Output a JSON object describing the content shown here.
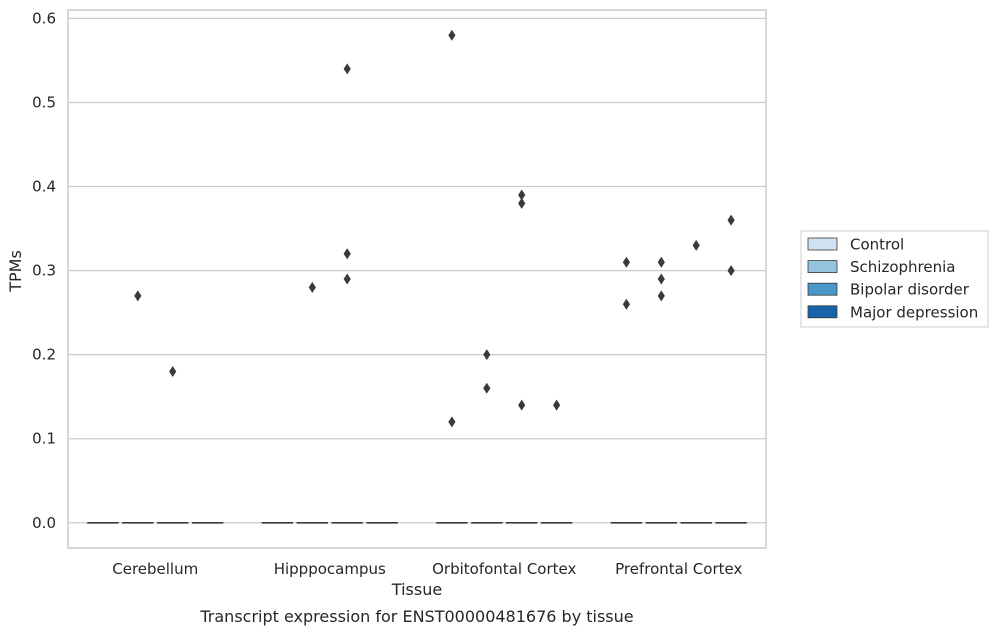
{
  "caption": "Transcript expression for ENST00000481676 by tissue",
  "colors": {
    "grid": "#cccccc",
    "frame": "#cccccc",
    "marker": "#3a3a3a",
    "median_line": "#3a3a3a",
    "legend_border": "#cccccc"
  },
  "chart_data": {
    "type": "boxplot",
    "title": "",
    "xlabel": "Tissue",
    "ylabel": "TPMs",
    "ylim": [
      -0.03,
      0.61
    ],
    "yticks": [
      "0.0",
      "0.1",
      "0.2",
      "0.3",
      "0.4",
      "0.5",
      "0.6"
    ],
    "grid": true,
    "legend_position": "right, outside plot",
    "categories": [
      "Cerebellum",
      "Hipppocampus",
      "Orbitofontal Cortex",
      "Prefrontal Cortex"
    ],
    "series": [
      {
        "name": "Control",
        "color": "#d0e1f2",
        "median": [
          0,
          0,
          0,
          0
        ],
        "outliers": [
          [],
          [],
          [
            0.12,
            0.58
          ],
          [
            0.26,
            0.31
          ]
        ]
      },
      {
        "name": "Schizophrenia",
        "color": "#94c4df",
        "median": [
          0,
          0,
          0,
          0
        ],
        "outliers": [
          [
            0.27
          ],
          [
            0.28
          ],
          [
            0.16,
            0.2
          ],
          [
            0.27,
            0.29,
            0.31
          ]
        ]
      },
      {
        "name": "Bipolar disorder",
        "color": "#4a98c9",
        "median": [
          0,
          0,
          0,
          0
        ],
        "outliers": [
          [
            0.18
          ],
          [
            0.29,
            0.32,
            0.54
          ],
          [
            0.14,
            0.38,
            0.39
          ],
          [
            0.33
          ]
        ]
      },
      {
        "name": "Major depression",
        "color": "#1764ab",
        "median": [
          0,
          0,
          0,
          0
        ],
        "outliers": [
          [],
          [],
          [
            0.14
          ],
          [
            0.3,
            0.36
          ]
        ]
      }
    ]
  }
}
